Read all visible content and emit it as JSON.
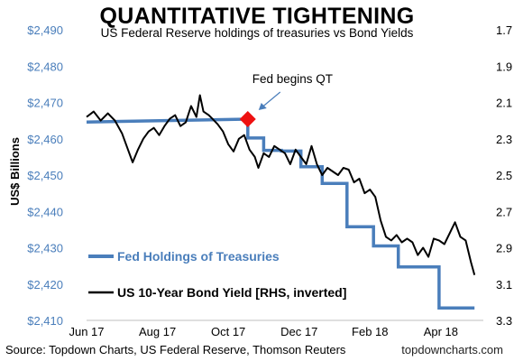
{
  "title": "QUANTITATIVE TIGHTENING",
  "subtitle": "US Federal Reserve holdings of treasuries vs Bond Yields",
  "source": "Source: Topdown Charts, US Federal Reserve, Thomson Reuters",
  "website": "topdowncharts.com",
  "annotation": "Fed begins QT",
  "colors": {
    "holdings": "#4a7ebb",
    "yield": "#000000",
    "marker": "#ee1111",
    "left_axis_text": "#4a7ebb"
  },
  "chart_data": {
    "type": "line",
    "ylabel": "US$ Billions",
    "x_ticks": [
      "Jun 17",
      "Aug 17",
      "Oct 17",
      "Dec 17",
      "Feb 18",
      "Apr 18"
    ],
    "x_range": [
      0,
      11.2
    ],
    "ylim_left": [
      2410,
      2490
    ],
    "y_ticks_left": [
      "$2,490",
      "$2,480",
      "$2,470",
      "$2,460",
      "$2,450",
      "$2,440",
      "$2,430",
      "$2,420",
      "$2,410"
    ],
    "ylim_right_inverted": [
      1.7,
      3.3
    ],
    "y_ticks_right": [
      "1.7",
      "1.9",
      "2.1",
      "2.3",
      "2.5",
      "2.7",
      "2.9",
      "3.1",
      "3.3"
    ],
    "series": [
      {
        "name": "Fed Holdings of Treasuries",
        "axis": "left",
        "step": true,
        "x": [
          0,
          4.55,
          4.55,
          5.0,
          5.0,
          5.5,
          5.5,
          6.05,
          6.05,
          6.65,
          6.65,
          7.35,
          7.35,
          8.1,
          8.1,
          8.8,
          8.8,
          9.95,
          9.95,
          10.95
        ],
        "values": [
          2464.6,
          2465.4,
          2460.2,
          2460.2,
          2456.8,
          2456.8,
          2456.6,
          2456.6,
          2452.3,
          2452.3,
          2447.7,
          2447.7,
          2435.8,
          2435.8,
          2430.5,
          2430.5,
          2424.7,
          2424.7,
          2413.4,
          2413.4
        ]
      },
      {
        "name": "US 10-Year Bond Yield [RHS, inverted]",
        "axis": "right",
        "x": [
          0,
          0.2,
          0.4,
          0.6,
          0.8,
          1.0,
          1.15,
          1.3,
          1.45,
          1.6,
          1.75,
          1.9,
          2.05,
          2.2,
          2.35,
          2.5,
          2.65,
          2.8,
          2.95,
          3.1,
          3.2,
          3.3,
          3.45,
          3.55,
          3.7,
          3.85,
          4.0,
          4.15,
          4.3,
          4.45,
          4.6,
          4.75,
          4.85,
          5.0,
          5.15,
          5.3,
          5.45,
          5.6,
          5.75,
          5.9,
          6.05,
          6.2,
          6.35,
          6.5,
          6.65,
          6.8,
          6.95,
          7.1,
          7.25,
          7.4,
          7.55,
          7.7,
          7.85,
          8.0,
          8.15,
          8.3,
          8.45,
          8.6,
          8.75,
          8.9,
          9.05,
          9.2,
          9.35,
          9.5,
          9.65,
          9.8,
          9.95,
          10.1,
          10.25,
          10.4,
          10.55,
          10.7,
          10.85,
          10.95
        ],
        "values": [
          2.18,
          2.15,
          2.2,
          2.16,
          2.2,
          2.27,
          2.35,
          2.43,
          2.36,
          2.3,
          2.26,
          2.24,
          2.28,
          2.23,
          2.19,
          2.17,
          2.23,
          2.21,
          2.12,
          2.18,
          2.06,
          2.15,
          2.17,
          2.19,
          2.22,
          2.26,
          2.33,
          2.37,
          2.3,
          2.28,
          2.36,
          2.4,
          2.46,
          2.38,
          2.4,
          2.34,
          2.36,
          2.38,
          2.44,
          2.36,
          2.4,
          2.44,
          2.34,
          2.44,
          2.5,
          2.46,
          2.48,
          2.5,
          2.46,
          2.47,
          2.54,
          2.52,
          2.6,
          2.58,
          2.62,
          2.75,
          2.84,
          2.86,
          2.83,
          2.87,
          2.85,
          2.87,
          2.94,
          2.9,
          2.95,
          2.85,
          2.86,
          2.88,
          2.82,
          2.76,
          2.84,
          2.86,
          2.98,
          3.05
        ]
      }
    ],
    "events": [
      {
        "label": "Fed begins QT",
        "x": 4.55,
        "value": 2465.4
      }
    ]
  }
}
